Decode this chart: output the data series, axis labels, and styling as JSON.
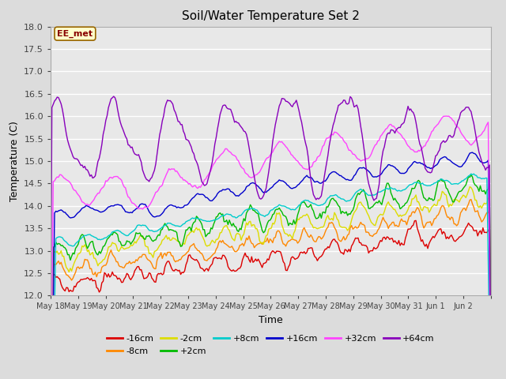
{
  "title": "Soil/Water Temperature Set 2",
  "xlabel": "Time",
  "ylabel": "Temperature (C)",
  "ylim": [
    12.0,
    18.0
  ],
  "yticks": [
    12.0,
    12.5,
    13.0,
    13.5,
    14.0,
    14.5,
    15.0,
    15.5,
    16.0,
    16.5,
    17.0,
    17.5,
    18.0
  ],
  "background_color": "#dcdcdc",
  "axes_bg_color": "#e8e8e8",
  "annotation_text": "EE_met",
  "annotation_bg": "#ffffcc",
  "annotation_border": "#996600",
  "series": [
    {
      "label": "-16cm",
      "color": "#dd0000"
    },
    {
      "label": "-8cm",
      "color": "#ff8800"
    },
    {
      "label": "-2cm",
      "color": "#dddd00"
    },
    {
      "label": "+2cm",
      "color": "#00bb00"
    },
    {
      "label": "+8cm",
      "color": "#00cccc"
    },
    {
      "label": "+16cm",
      "color": "#0000cc"
    },
    {
      "label": "+32cm",
      "color": "#ff44ff"
    },
    {
      "label": "+64cm",
      "color": "#8800bb"
    }
  ],
  "n_points": 336,
  "x_tick_labels": [
    "May 18",
    "May 19",
    "May 20",
    "May 21",
    "May 22",
    "May 23",
    "May 24",
    "May 25",
    "May 26",
    "May 27",
    "May 28",
    "May 29",
    "May 30",
    "May 31",
    "Jun 1",
    "Jun 2",
    ""
  ]
}
